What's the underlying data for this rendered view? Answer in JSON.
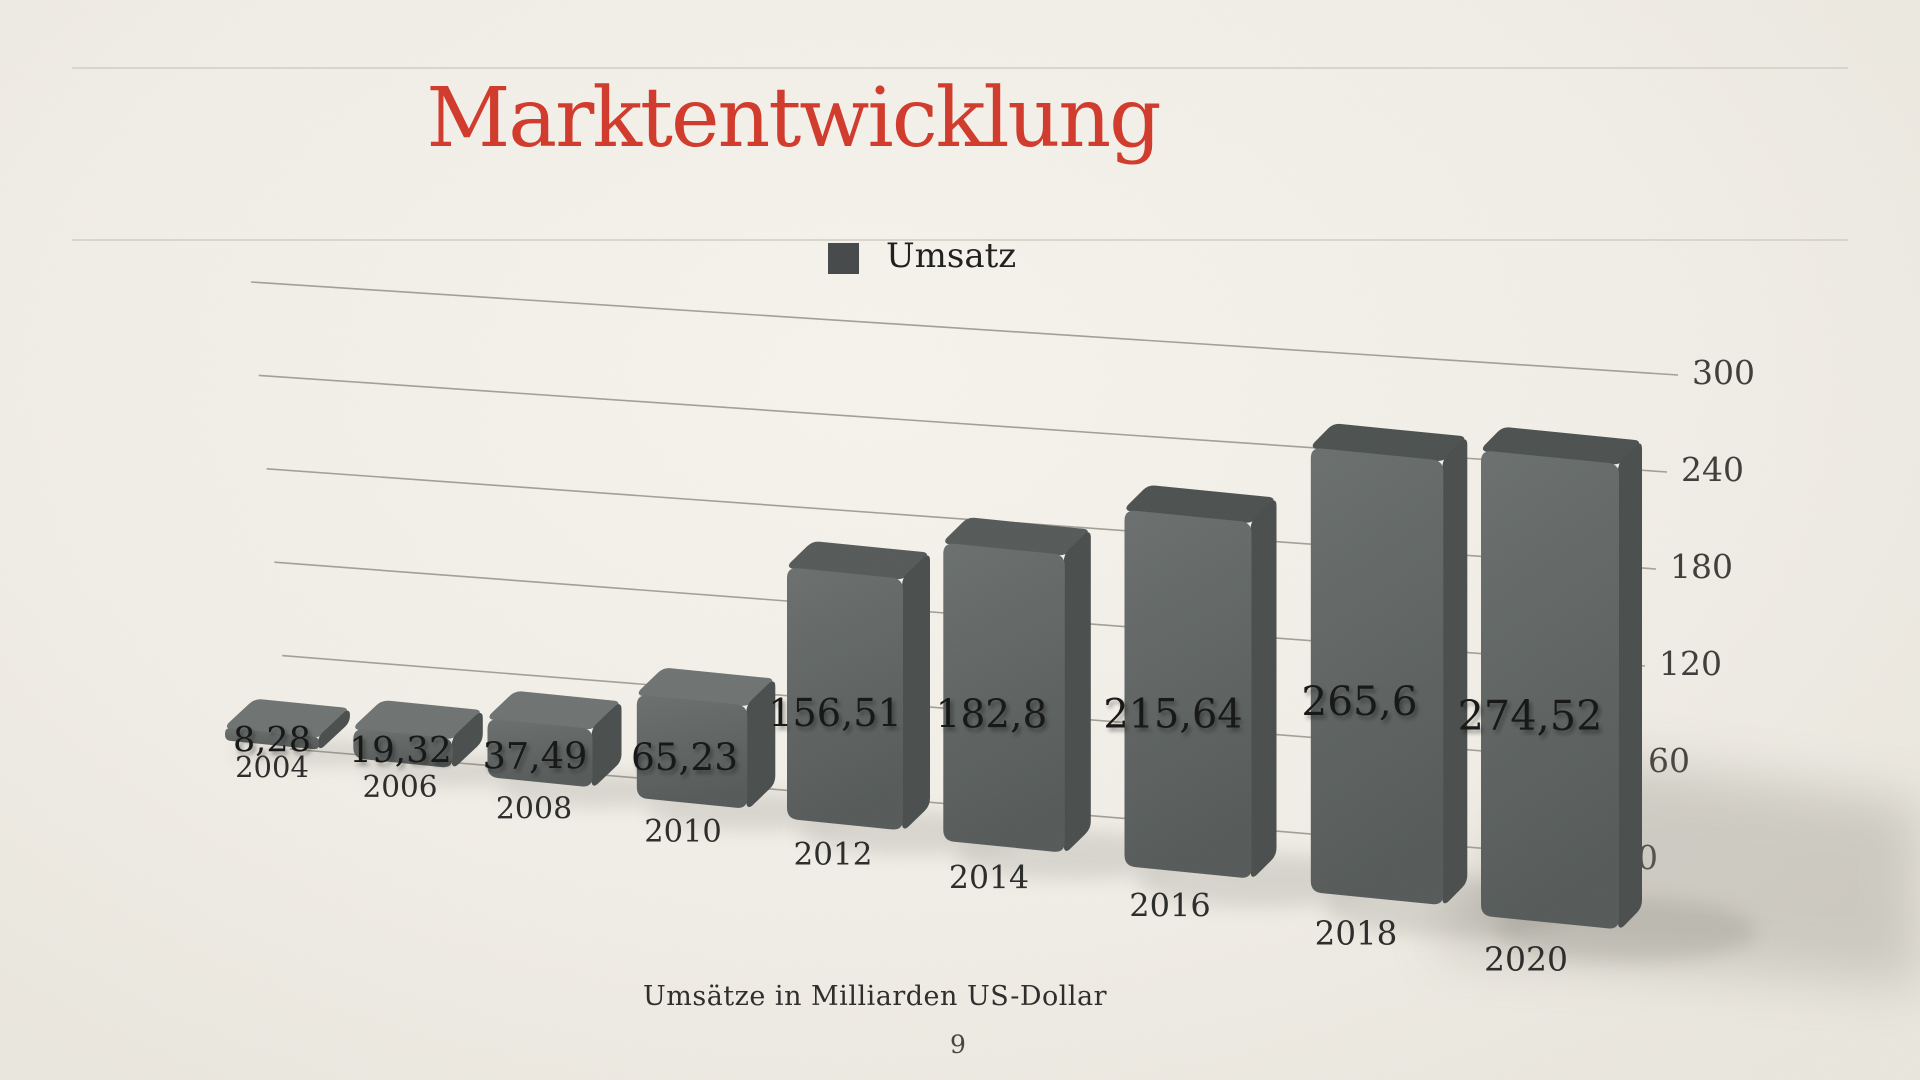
{
  "slide": {
    "page_number": "9",
    "background_color": "#f1eee7",
    "title_color": "#d13a2b",
    "divider_color": "#d9d6cc"
  },
  "legend": {
    "swatch_color": "#45494a"
  },
  "chart_data": {
    "type": "bar",
    "style": "3d-perspective",
    "title": "Marktentwicklung",
    "series_name": "Umsatz",
    "categories": [
      "2004",
      "2006",
      "2008",
      "2010",
      "2012",
      "2014",
      "2016",
      "2018",
      "2020"
    ],
    "values": [
      8.28,
      19.32,
      37.49,
      65.23,
      156.51,
      182.8,
      215.64,
      265.6,
      274.52
    ],
    "value_labels": [
      "8,28",
      "19,32",
      "37,49",
      "65,23",
      "156,51",
      "182,8",
      "215,64",
      "265,6",
      "274,52"
    ],
    "y_ticks": [
      300,
      240,
      180,
      120,
      60,
      0
    ],
    "ylim": [
      0,
      300
    ],
    "grid": true,
    "legend_position": "top-center",
    "xlabel": "Umsätze in Milliarden US-Dollar",
    "ylabel": "",
    "bar_color_front": "#5e6362",
    "bar_color_top_short": "#6f7473",
    "bar_color_top_tall": "#4d5251",
    "bar_color_side": "#4a4f4e",
    "gridline_color": "#a29f96",
    "tick_label_color": "#3e3d39",
    "value_label_color": "#171715",
    "category_label_color": "#2b2b29"
  }
}
